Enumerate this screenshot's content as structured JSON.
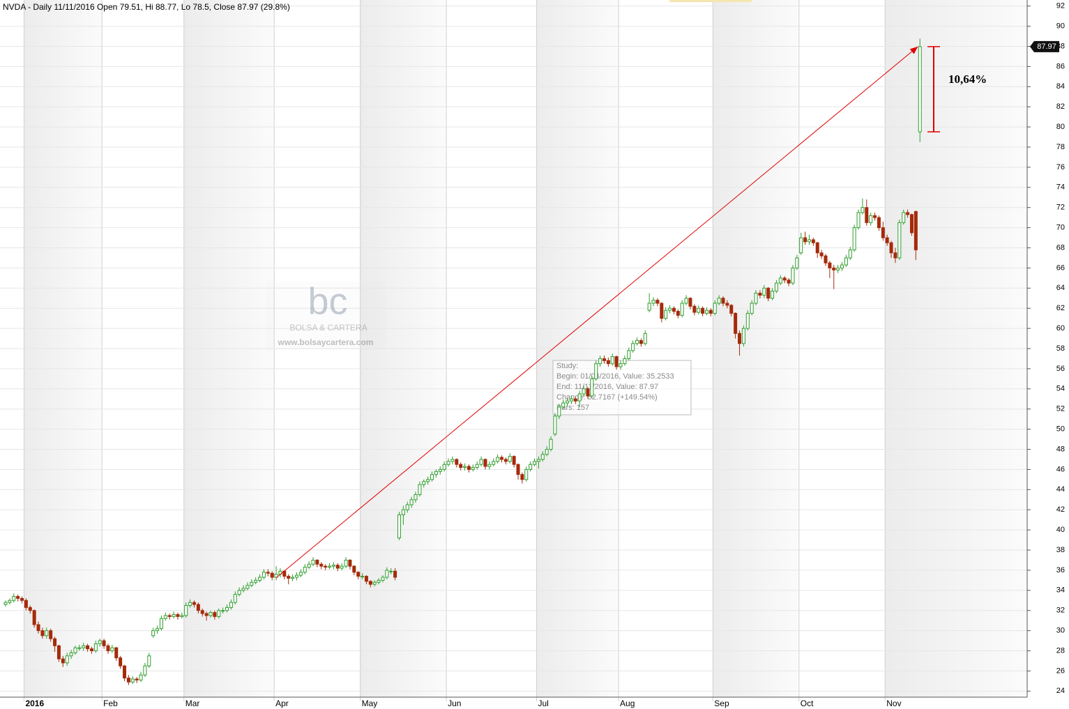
{
  "chart_data": {
    "type": "candlestick",
    "title": "NVDA - Daily 11/11/2016 Open 79.51, Hi 88.77, Lo 78.5, Close 87.97 (29.8%)",
    "annotation": "10,64%",
    "watermark": {
      "logo": "bc",
      "name": "BOLSA & CARTERA",
      "url": "www.bolsaycartera.com"
    },
    "study": [
      "Study:",
      "Begin:      01/04/2016, Value: 35.2533",
      "End:         11/11/2016, Value: 87.97",
      "Change:   52.7167 (+149.54%)",
      "Bars:      157"
    ],
    "trend_line": [
      35.2533,
      87.97
    ],
    "up_color": "#2e9e2e",
    "down_color": "#a52a0a",
    "line_color": "#e00000",
    "grid": true,
    "ylim": [
      23.4,
      92.6
    ],
    "yticks": [
      24,
      26,
      28,
      30,
      32,
      34,
      36,
      38,
      40,
      42,
      44,
      46,
      48,
      50,
      52,
      54,
      56,
      58,
      60,
      62,
      64,
      66,
      68,
      70,
      72,
      74,
      76,
      78,
      80,
      82,
      84,
      86,
      88,
      90,
      92
    ],
    "categories": [
      null,
      null,
      null,
      null,
      null,
      "2016",
      null,
      null,
      null,
      null,
      null,
      null,
      null,
      null,
      null,
      null,
      null,
      null,
      null,
      null,
      null,
      null,
      null,
      null,
      "Feb",
      null,
      null,
      null,
      null,
      null,
      null,
      null,
      null,
      null,
      null,
      null,
      null,
      null,
      null,
      null,
      null,
      null,
      null,
      null,
      "Mar",
      null,
      null,
      null,
      null,
      null,
      null,
      null,
      null,
      null,
      null,
      null,
      null,
      null,
      null,
      null,
      null,
      null,
      null,
      null,
      null,
      null,
      "Apr",
      null,
      null,
      null,
      null,
      null,
      null,
      null,
      null,
      null,
      null,
      null,
      null,
      null,
      null,
      null,
      null,
      null,
      null,
      null,
      null,
      "May",
      null,
      null,
      null,
      null,
      null,
      null,
      null,
      null,
      null,
      null,
      null,
      null,
      null,
      null,
      null,
      null,
      null,
      null,
      null,
      null,
      "Jun",
      null,
      null,
      null,
      null,
      null,
      null,
      null,
      null,
      null,
      null,
      null,
      null,
      null,
      null,
      null,
      null,
      null,
      null,
      null,
      null,
      null,
      "Jul",
      null,
      null,
      null,
      null,
      null,
      null,
      null,
      null,
      null,
      null,
      null,
      null,
      null,
      null,
      null,
      null,
      null,
      null,
      null,
      "Aug",
      null,
      null,
      null,
      null,
      null,
      null,
      null,
      null,
      null,
      null,
      null,
      null,
      null,
      null,
      null,
      null,
      null,
      null,
      null,
      null,
      null,
      null,
      "Sep",
      null,
      null,
      null,
      null,
      null,
      null,
      null,
      null,
      null,
      null,
      null,
      null,
      null,
      null,
      null,
      null,
      null,
      null,
      null,
      null,
      "Oct",
      null,
      null,
      null,
      null,
      null,
      null,
      null,
      null,
      null,
      null,
      null,
      null,
      null,
      null,
      null,
      null,
      null,
      null,
      null,
      null,
      "Nov",
      null,
      null,
      null,
      null,
      null,
      null,
      null,
      null
    ],
    "ohlc": [
      [
        32.6,
        33.0,
        32.4,
        32.8
      ],
      [
        32.8,
        33.2,
        32.6,
        33.0
      ],
      [
        33.0,
        33.7,
        32.8,
        33.4
      ],
      [
        33.4,
        33.6,
        32.9,
        33.2
      ],
      [
        33.2,
        33.4,
        32.7,
        33.0
      ],
      [
        33.0,
        33.2,
        32.0,
        32.3
      ],
      [
        32.3,
        32.5,
        31.7,
        32.0
      ],
      [
        32.0,
        32.1,
        30.3,
        30.6
      ],
      [
        30.6,
        30.9,
        29.7,
        30.0
      ],
      [
        30.0,
        30.3,
        29.2,
        29.5
      ],
      [
        29.5,
        30.3,
        29.2,
        30.0
      ],
      [
        30.0,
        30.2,
        28.9,
        29.2
      ],
      [
        29.2,
        29.4,
        27.9,
        28.5
      ],
      [
        28.5,
        28.6,
        26.9,
        27.2
      ],
      [
        27.2,
        27.5,
        26.4,
        26.8
      ],
      [
        26.8,
        27.8,
        26.5,
        27.5
      ],
      [
        27.5,
        28.1,
        27.2,
        27.8
      ],
      [
        27.8,
        28.5,
        27.6,
        28.3
      ],
      [
        28.3,
        28.6,
        28.0,
        28.3
      ],
      [
        28.3,
        28.8,
        28.0,
        28.5
      ],
      [
        28.5,
        28.7,
        27.9,
        28.2
      ],
      [
        28.2,
        28.4,
        27.7,
        28.0
      ],
      [
        28.0,
        29.0,
        27.8,
        28.7
      ],
      [
        28.7,
        29.2,
        28.4,
        29.0
      ],
      [
        29.0,
        29.2,
        28.2,
        28.5
      ],
      [
        28.5,
        28.7,
        27.7,
        28.0
      ],
      [
        28.0,
        28.6,
        27.8,
        28.3
      ],
      [
        28.3,
        28.4,
        27.0,
        27.3
      ],
      [
        27.3,
        27.5,
        26.2,
        26.5
      ],
      [
        26.5,
        26.6,
        25.0,
        25.3
      ],
      [
        25.3,
        25.6,
        24.6,
        24.9
      ],
      [
        24.9,
        25.5,
        24.7,
        25.2
      ],
      [
        25.2,
        25.4,
        24.8,
        25.1
      ],
      [
        25.1,
        25.9,
        24.9,
        25.6
      ],
      [
        25.6,
        26.8,
        25.4,
        26.5
      ],
      [
        26.5,
        27.8,
        26.3,
        27.5
      ],
      [
        29.5,
        30.3,
        29.3,
        30.0
      ],
      [
        30.0,
        30.5,
        29.7,
        30.2
      ],
      [
        30.2,
        31.5,
        30.0,
        31.2
      ],
      [
        31.2,
        31.8,
        31.0,
        31.5
      ],
      [
        31.5,
        31.7,
        31.1,
        31.4
      ],
      [
        31.4,
        31.9,
        31.2,
        31.6
      ],
      [
        31.6,
        31.8,
        31.1,
        31.4
      ],
      [
        31.4,
        31.8,
        31.2,
        31.5
      ],
      [
        31.5,
        32.8,
        31.3,
        32.5
      ],
      [
        32.5,
        33.1,
        32.3,
        32.8
      ],
      [
        32.8,
        33.0,
        32.3,
        32.6
      ],
      [
        32.6,
        32.8,
        31.7,
        32.0
      ],
      [
        32.0,
        32.2,
        31.4,
        31.7
      ],
      [
        31.7,
        31.9,
        31.0,
        31.5
      ],
      [
        31.5,
        32.0,
        31.3,
        31.8
      ],
      [
        31.8,
        32.0,
        31.1,
        31.4
      ],
      [
        31.4,
        32.2,
        31.2,
        32.0
      ],
      [
        32.0,
        32.3,
        31.7,
        32.0
      ],
      [
        32.0,
        32.6,
        31.8,
        32.3
      ],
      [
        32.3,
        33.1,
        32.1,
        32.8
      ],
      [
        32.8,
        33.9,
        32.6,
        33.6
      ],
      [
        33.6,
        34.3,
        33.4,
        34.0
      ],
      [
        34.0,
        34.5,
        33.8,
        34.2
      ],
      [
        34.2,
        34.8,
        34.0,
        34.5
      ],
      [
        34.5,
        35.1,
        34.3,
        34.8
      ],
      [
        34.8,
        35.3,
        34.6,
        35.0
      ],
      [
        35.0,
        35.6,
        34.8,
        35.3
      ],
      [
        35.3,
        36.1,
        35.1,
        35.8
      ],
      [
        35.8,
        36.1,
        35.4,
        35.7
      ],
      [
        35.7,
        35.9,
        35.0,
        35.3
      ],
      [
        35.3,
        36.4,
        35.0,
        35.6
      ],
      [
        35.6,
        36.2,
        35.3,
        35.9
      ],
      [
        35.9,
        36.0,
        35.1,
        35.4
      ],
      [
        35.4,
        35.6,
        34.6,
        35.2
      ],
      [
        35.2,
        35.6,
        34.9,
        35.3
      ],
      [
        35.3,
        35.8,
        35.0,
        35.5
      ],
      [
        35.5,
        36.1,
        35.3,
        35.8
      ],
      [
        35.8,
        36.6,
        35.6,
        36.3
      ],
      [
        36.3,
        36.9,
        36.1,
        36.6
      ],
      [
        36.6,
        37.3,
        36.4,
        37.0
      ],
      [
        37.0,
        37.1,
        36.3,
        36.6
      ],
      [
        36.6,
        36.8,
        36.1,
        36.4
      ],
      [
        36.4,
        36.6,
        36.0,
        36.3
      ],
      [
        36.3,
        36.7,
        36.1,
        36.4
      ],
      [
        36.4,
        36.8,
        36.1,
        36.5
      ],
      [
        36.5,
        36.7,
        35.9,
        36.2
      ],
      [
        36.2,
        36.7,
        36.0,
        36.4
      ],
      [
        36.4,
        37.3,
        36.2,
        37.0
      ],
      [
        37.0,
        37.1,
        36.1,
        36.4
      ],
      [
        36.4,
        36.5,
        35.5,
        35.8
      ],
      [
        35.8,
        35.9,
        35.1,
        35.4
      ],
      [
        35.4,
        35.7,
        35.1,
        35.4
      ],
      [
        35.4,
        35.5,
        34.6,
        34.9
      ],
      [
        34.9,
        35.0,
        34.3,
        34.6
      ],
      [
        34.6,
        35.0,
        34.4,
        34.8
      ],
      [
        34.8,
        35.2,
        34.6,
        35.0
      ],
      [
        35.0,
        35.5,
        34.8,
        35.3
      ],
      [
        35.3,
        36.3,
        35.1,
        36.0
      ],
      [
        35.9,
        36.2,
        35.6,
        35.9
      ],
      [
        35.9,
        36.2,
        35.0,
        35.3
      ],
      [
        39.2,
        41.8,
        39.0,
        41.5
      ],
      [
        41.5,
        42.4,
        40.5,
        42.0
      ],
      [
        42.0,
        42.8,
        41.7,
        42.5
      ],
      [
        42.5,
        43.3,
        42.2,
        43.0
      ],
      [
        43.0,
        43.8,
        42.7,
        43.5
      ],
      [
        43.5,
        44.8,
        43.3,
        44.5
      ],
      [
        44.5,
        45.0,
        44.2,
        44.8
      ],
      [
        44.8,
        45.3,
        44.5,
        45.0
      ],
      [
        45.0,
        45.8,
        44.8,
        45.5
      ],
      [
        45.5,
        46.0,
        45.2,
        45.8
      ],
      [
        45.8,
        46.3,
        45.5,
        46.0
      ],
      [
        46.0,
        46.8,
        45.8,
        46.5
      ],
      [
        46.5,
        47.1,
        46.3,
        46.8
      ],
      [
        46.8,
        47.3,
        46.5,
        47.0
      ],
      [
        47.0,
        47.1,
        46.2,
        46.5
      ],
      [
        46.5,
        46.7,
        45.9,
        46.2
      ],
      [
        46.2,
        46.6,
        45.9,
        46.3
      ],
      [
        46.3,
        46.5,
        45.7,
        46.0
      ],
      [
        46.0,
        46.5,
        45.8,
        46.2
      ],
      [
        46.2,
        46.8,
        46.0,
        46.5
      ],
      [
        46.5,
        47.3,
        46.3,
        47.0
      ],
      [
        47.0,
        47.1,
        46.0,
        46.3
      ],
      [
        46.3,
        46.8,
        46.0,
        46.5
      ],
      [
        46.5,
        47.1,
        46.3,
        46.8
      ],
      [
        46.8,
        47.5,
        46.6,
        47.2
      ],
      [
        47.2,
        47.4,
        46.7,
        47.0
      ],
      [
        47.0,
        47.2,
        46.5,
        46.8
      ],
      [
        46.8,
        47.6,
        46.6,
        47.3
      ],
      [
        47.3,
        47.4,
        46.2,
        46.5
      ],
      [
        46.5,
        46.6,
        45.0,
        45.5
      ],
      [
        45.5,
        45.7,
        44.6,
        45.0
      ],
      [
        45.0,
        46.3,
        44.8,
        46.0
      ],
      [
        46.0,
        46.8,
        45.8,
        46.5
      ],
      [
        46.5,
        47.1,
        46.3,
        46.8
      ],
      [
        46.8,
        47.3,
        46.1,
        47.0
      ],
      [
        47.0,
        47.8,
        46.8,
        47.5
      ],
      [
        47.5,
        48.3,
        47.3,
        48.0
      ],
      [
        48.0,
        49.3,
        47.8,
        49.0
      ],
      [
        49.5,
        51.6,
        49.3,
        51.3
      ],
      [
        51.3,
        52.5,
        51.0,
        52.2
      ],
      [
        52.2,
        52.9,
        52.0,
        52.6
      ],
      [
        52.6,
        53.1,
        52.3,
        52.8
      ],
      [
        52.8,
        53.3,
        52.5,
        53.0
      ],
      [
        53.0,
        53.2,
        52.5,
        52.8
      ],
      [
        52.8,
        53.8,
        52.2,
        53.5
      ],
      [
        53.5,
        54.3,
        53.2,
        54.0
      ],
      [
        54.0,
        54.2,
        53.0,
        53.3
      ],
      [
        53.3,
        55.3,
        53.1,
        55.0
      ],
      [
        55.0,
        56.8,
        54.8,
        56.5
      ],
      [
        56.5,
        57.3,
        56.2,
        57.0
      ],
      [
        57.0,
        57.3,
        56.5,
        56.8
      ],
      [
        56.8,
        57.1,
        56.2,
        56.5
      ],
      [
        56.5,
        57.5,
        56.3,
        57.2
      ],
      [
        57.2,
        57.3,
        55.9,
        56.2
      ],
      [
        56.2,
        56.8,
        55.9,
        56.5
      ],
      [
        56.5,
        57.3,
        56.3,
        57.0
      ],
      [
        57.0,
        58.1,
        56.8,
        57.8
      ],
      [
        57.8,
        58.8,
        57.6,
        58.5
      ],
      [
        58.5,
        59.1,
        58.3,
        58.8
      ],
      [
        58.8,
        59.0,
        58.2,
        58.5
      ],
      [
        58.5,
        59.8,
        58.3,
        59.5
      ],
      [
        61.8,
        63.5,
        61.6,
        62.5
      ],
      [
        62.5,
        63.1,
        62.2,
        62.8
      ],
      [
        62.8,
        63.0,
        62.2,
        62.5
      ],
      [
        62.5,
        62.6,
        60.6,
        61.0
      ],
      [
        61.0,
        62.1,
        60.8,
        61.8
      ],
      [
        61.8,
        62.3,
        61.5,
        62.0
      ],
      [
        62.0,
        62.2,
        61.4,
        61.7
      ],
      [
        61.7,
        61.9,
        61.0,
        61.3
      ],
      [
        61.3,
        62.8,
        61.1,
        62.5
      ],
      [
        62.5,
        63.3,
        62.3,
        63.0
      ],
      [
        63.0,
        63.1,
        61.9,
        62.2
      ],
      [
        62.2,
        62.4,
        61.3,
        61.6
      ],
      [
        61.6,
        62.3,
        61.4,
        62.0
      ],
      [
        62.0,
        62.2,
        61.2,
        61.5
      ],
      [
        61.5,
        62.1,
        61.3,
        61.8
      ],
      [
        61.8,
        62.0,
        61.2,
        61.5
      ],
      [
        61.5,
        62.8,
        61.3,
        62.5
      ],
      [
        62.5,
        63.3,
        62.3,
        63.0
      ],
      [
        63.0,
        63.2,
        62.2,
        62.5
      ],
      [
        62.5,
        62.8,
        62.0,
        62.3
      ],
      [
        62.3,
        62.4,
        61.2,
        61.5
      ],
      [
        61.5,
        61.6,
        59.0,
        59.5
      ],
      [
        59.5,
        59.8,
        57.3,
        58.5
      ],
      [
        58.5,
        60.3,
        58.2,
        60.0
      ],
      [
        60.0,
        61.8,
        59.8,
        61.5
      ],
      [
        61.5,
        62.8,
        61.3,
        62.5
      ],
      [
        62.5,
        63.8,
        62.3,
        63.5
      ],
      [
        63.5,
        63.8,
        63.0,
        63.3
      ],
      [
        63.3,
        64.3,
        63.0,
        64.0
      ],
      [
        64.0,
        64.1,
        62.7,
        63.0
      ],
      [
        63.0,
        64.0,
        62.8,
        63.7
      ],
      [
        63.7,
        64.8,
        63.5,
        64.5
      ],
      [
        64.5,
        65.3,
        64.3,
        65.0
      ],
      [
        65.0,
        65.2,
        64.5,
        64.8
      ],
      [
        64.8,
        65.0,
        64.2,
        64.5
      ],
      [
        64.5,
        66.3,
        64.3,
        66.0
      ],
      [
        66.0,
        67.3,
        65.8,
        67.0
      ],
      [
        67.5,
        69.5,
        67.3,
        69.0
      ],
      [
        69.0,
        69.6,
        68.3,
        68.6
      ],
      [
        68.6,
        69.3,
        68.3,
        68.8
      ],
      [
        68.8,
        69.0,
        68.2,
        68.5
      ],
      [
        68.5,
        68.6,
        67.0,
        67.5
      ],
      [
        67.5,
        67.8,
        66.9,
        67.2
      ],
      [
        67.2,
        67.4,
        66.2,
        66.5
      ],
      [
        66.5,
        66.7,
        65.0,
        66.0
      ],
      [
        66.0,
        66.3,
        63.9,
        65.8
      ],
      [
        65.8,
        66.3,
        65.5,
        66.0
      ],
      [
        66.0,
        66.6,
        65.7,
        66.3
      ],
      [
        66.3,
        67.3,
        66.1,
        67.0
      ],
      [
        67.0,
        68.1,
        66.8,
        67.8
      ],
      [
        67.8,
        70.3,
        67.6,
        70.0
      ],
      [
        70.0,
        71.8,
        69.8,
        71.5
      ],
      [
        71.5,
        72.9,
        71.3,
        72.0
      ],
      [
        72.0,
        72.8,
        70.2,
        70.5
      ],
      [
        70.5,
        71.5,
        70.2,
        71.2
      ],
      [
        71.2,
        71.5,
        70.7,
        71.0
      ],
      [
        71.0,
        71.2,
        69.7,
        70.0
      ],
      [
        70.0,
        70.6,
        68.7,
        69.0
      ],
      [
        69.0,
        69.3,
        68.2,
        68.5
      ],
      [
        68.5,
        68.7,
        67.0,
        67.5
      ],
      [
        67.5,
        68.0,
        66.5,
        67.0
      ],
      [
        67.0,
        70.8,
        66.8,
        70.5
      ],
      [
        70.5,
        71.8,
        70.3,
        71.5
      ],
      [
        71.5,
        71.8,
        71.0,
        71.3
      ],
      [
        71.3,
        71.4,
        69.2,
        69.5
      ],
      [
        71.6,
        71.7,
        66.8,
        67.8
      ],
      [
        79.51,
        88.77,
        78.5,
        87.97
      ]
    ]
  }
}
